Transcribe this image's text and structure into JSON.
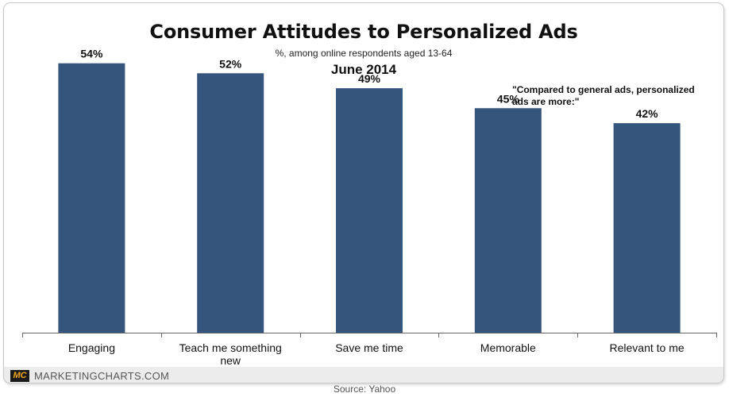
{
  "chart_data": {
    "type": "bar",
    "title": "Consumer Attitudes to Personalized Ads",
    "subtitle": "%, among online respondents aged 13-64",
    "date": "June 2014",
    "annotation": "\"Compared to general ads, personalized ads are more:\"",
    "categories": [
      "Engaging",
      "Teach me something new",
      "Save me time",
      "Memorable",
      "Relevant to me"
    ],
    "values": [
      54,
      52,
      49,
      45,
      42
    ],
    "data_labels": [
      "54%",
      "52%",
      "49%",
      "45%",
      "42%"
    ],
    "ylim": [
      0,
      60
    ],
    "grid": false,
    "bar_color": "#36557d"
  },
  "footer": {
    "logo": "MC",
    "brand": "MARKETINGCHARTS.COM",
    "source": "Source: Yahoo"
  },
  "colors": {
    "logo_accent": "#f2a71b"
  }
}
